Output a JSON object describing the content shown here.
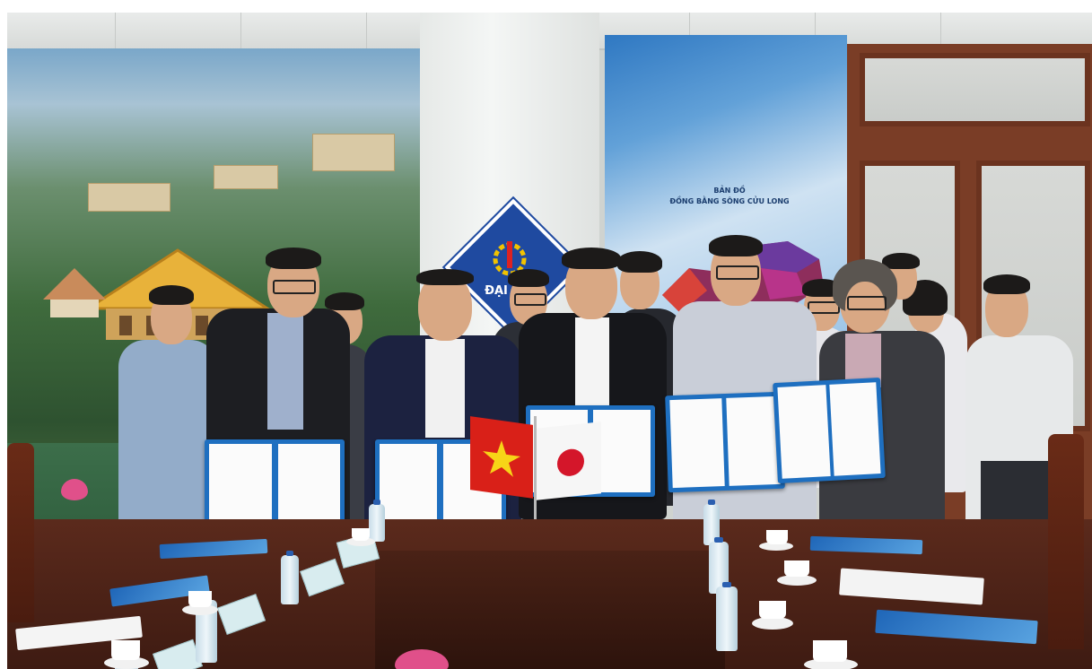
{
  "scene": {
    "banner_left_logo_text": "ĐẠI HỌC",
    "map_banner_title_line1": "BẢN ĐỒ",
    "map_banner_title_line2": "ĐỒNG BẰNG SÔNG CỬU LONG",
    "colors": {
      "table_wood": "#4a2216",
      "folder_blue": "#1e6fc0",
      "vietnam_flag_red": "#d92018",
      "vietnam_flag_star": "#f7d417",
      "japan_flag_red": "#d4162a"
    }
  }
}
